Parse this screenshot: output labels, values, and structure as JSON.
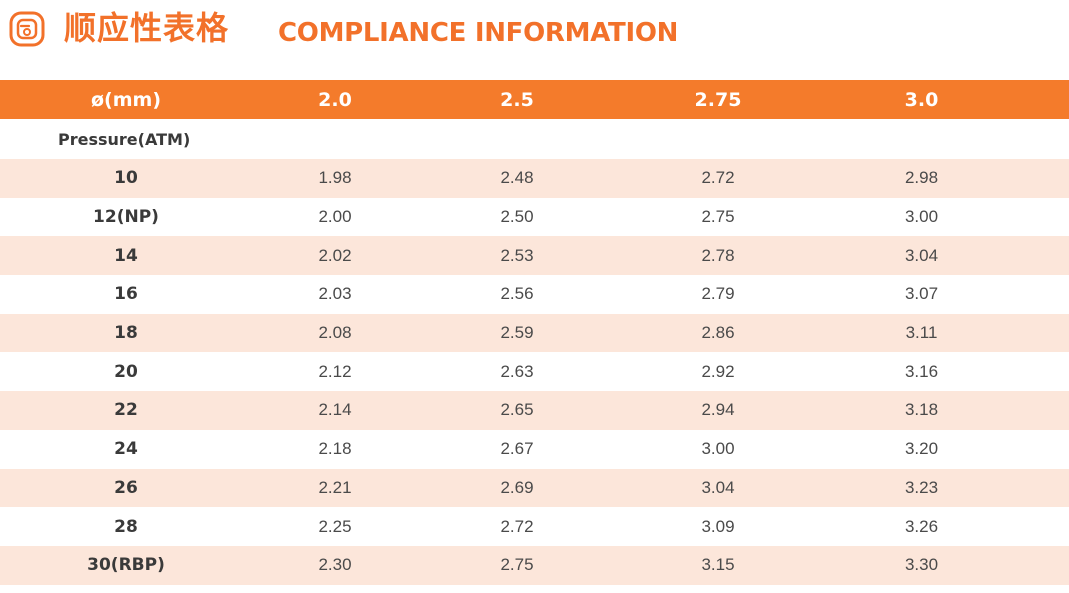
{
  "header": {
    "title_cn": "顺应性表格",
    "title_en": "COMPLIANCE INFORMATION",
    "logo_icon": "balloon-catheter-icon",
    "accent_color": "#F2712A"
  },
  "table": {
    "header_label": "ø(mm)",
    "diameters": [
      "2.0",
      "2.5",
      "2.75",
      "3.0"
    ],
    "sub_label": "Pressure(ATM)",
    "header_color": "#F47B2B",
    "stripe_color": "#FCE6DA",
    "rows": [
      {
        "pressure": "10",
        "values": [
          "1.98",
          "2.48",
          "2.72",
          "2.98"
        ]
      },
      {
        "pressure": "12(NP)",
        "values": [
          "2.00",
          "2.50",
          "2.75",
          "3.00"
        ]
      },
      {
        "pressure": "14",
        "values": [
          "2.02",
          "2.53",
          "2.78",
          "3.04"
        ]
      },
      {
        "pressure": "16",
        "values": [
          "2.03",
          "2.56",
          "2.79",
          "3.07"
        ]
      },
      {
        "pressure": "18",
        "values": [
          "2.08",
          "2.59",
          "2.86",
          "3.11"
        ]
      },
      {
        "pressure": "20",
        "values": [
          "2.12",
          "2.63",
          "2.92",
          "3.16"
        ]
      },
      {
        "pressure": "22",
        "values": [
          "2.14",
          "2.65",
          "2.94",
          "3.18"
        ]
      },
      {
        "pressure": "24",
        "values": [
          "2.18",
          "2.67",
          "3.00",
          "3.20"
        ]
      },
      {
        "pressure": "26",
        "values": [
          "2.21",
          "2.69",
          "3.04",
          "3.23"
        ]
      },
      {
        "pressure": "28",
        "values": [
          "2.25",
          "2.72",
          "3.09",
          "3.26"
        ]
      },
      {
        "pressure": "30(RBP)",
        "values": [
          "2.30",
          "2.75",
          "3.15",
          "3.30"
        ]
      }
    ]
  }
}
